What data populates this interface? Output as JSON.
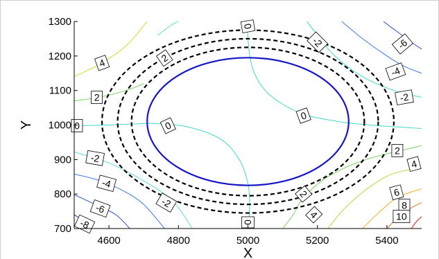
{
  "chart_data": {
    "type": "contour",
    "xlabel": "X",
    "ylabel": "Y",
    "xlim": [
      4500,
      5500
    ],
    "ylim": [
      700,
      1300
    ],
    "xticks": [
      "4600",
      "4800",
      "5000",
      "5200",
      "5400"
    ],
    "yticks": [
      "700",
      "800",
      "900",
      "1000",
      "1100",
      "1200",
      "1300"
    ],
    "grid": false,
    "ellipse": {
      "center_x": 5000,
      "center_y": 1010,
      "semi_x": 290,
      "semi_y": 185,
      "color": "#1414c8"
    },
    "dashed_rings": [
      {
        "center_x": 5000,
        "center_y": 1010,
        "semi_x": 335,
        "semi_y": 215
      },
      {
        "center_x": 5000,
        "center_y": 1010,
        "semi_x": 375,
        "semi_y": 240
      },
      {
        "center_x": 5000,
        "center_y": 1010,
        "semi_x": 420,
        "semi_y": 265
      }
    ],
    "contour_labels": [
      {
        "text": "4",
        "x": 4580,
        "y": 1180,
        "angle": -20
      },
      {
        "text": "2",
        "x": 4565,
        "y": 1080,
        "angle": 0
      },
      {
        "text": "0",
        "x": 4508,
        "y": 998,
        "angle": 0
      },
      {
        "text": "-2",
        "x": 4560,
        "y": 904,
        "angle": 10
      },
      {
        "text": "-4",
        "x": 4593,
        "y": 831,
        "angle": 15
      },
      {
        "text": "-6",
        "x": 4575,
        "y": 758,
        "angle": 20
      },
      {
        "text": "-8",
        "x": 4530,
        "y": 713,
        "angle": 25
      },
      {
        "text": "2",
        "x": 4760,
        "y": 1194,
        "angle": -35
      },
      {
        "text": "0",
        "x": 5000,
        "y": 1286,
        "angle": 80
      },
      {
        "text": "-2",
        "x": 5200,
        "y": 1240,
        "angle": 45
      },
      {
        "text": "-6",
        "x": 5445,
        "y": 1235,
        "angle": -40
      },
      {
        "text": "-4",
        "x": 5425,
        "y": 1155,
        "angle": -20
      },
      {
        "text": "-2",
        "x": 5450,
        "y": 1080,
        "angle": -10
      },
      {
        "text": "0",
        "x": 5160,
        "y": 1027,
        "angle": -20
      },
      {
        "text": "0",
        "x": 4770,
        "y": 998,
        "angle": -25
      },
      {
        "text": "2",
        "x": 5430,
        "y": 926,
        "angle": 0
      },
      {
        "text": "4",
        "x": 5478,
        "y": 887,
        "angle": -15
      },
      {
        "text": "6",
        "x": 5428,
        "y": 805,
        "angle": -15
      },
      {
        "text": "8",
        "x": 5450,
        "y": 767,
        "angle": 0
      },
      {
        "text": "10",
        "x": 5442,
        "y": 735,
        "angle": 0
      },
      {
        "text": "2",
        "x": 5160,
        "y": 800,
        "angle": 50
      },
      {
        "text": "4",
        "x": 5190,
        "y": 740,
        "angle": 45
      },
      {
        "text": "-2",
        "x": 4765,
        "y": 775,
        "angle": 30
      },
      {
        "text": "0",
        "x": 5000,
        "y": 718,
        "angle": 90
      }
    ],
    "colored_contours": [
      {
        "color": "#d8d820",
        "points": [
          [
            4500,
            1140
          ],
          [
            4580,
            1180
          ],
          [
            4650,
            1230
          ],
          [
            4710,
            1300
          ]
        ]
      },
      {
        "color": "#7ad35a",
        "points": [
          [
            4500,
            1070
          ],
          [
            4570,
            1080
          ],
          [
            4650,
            1100
          ],
          [
            4700,
            1120
          ]
        ]
      },
      {
        "color": "#60e890",
        "points": [
          [
            4740,
            1260
          ],
          [
            4780,
            1290
          ],
          [
            4800,
            1300
          ]
        ]
      },
      {
        "color": "#40d8d0",
        "points": [
          [
            4500,
            998
          ],
          [
            4600,
            1000
          ],
          [
            4720,
            1005
          ]
        ]
      },
      {
        "color": "#40d8d0",
        "points": [
          [
            4720,
            1005
          ],
          [
            4820,
            996
          ],
          [
            4920,
            960
          ],
          [
            4975,
            900
          ],
          [
            5000,
            830
          ],
          [
            5005,
            760
          ],
          [
            5000,
            700
          ]
        ]
      },
      {
        "color": "#40d8d0",
        "points": [
          [
            5000,
            1300
          ],
          [
            5000,
            1250
          ],
          [
            5015,
            1160
          ],
          [
            5060,
            1090
          ],
          [
            5150,
            1035
          ],
          [
            5260,
            1010
          ],
          [
            5350,
            1000
          ],
          [
            5500,
            990
          ]
        ]
      },
      {
        "color": "#60d8e8",
        "points": [
          [
            4500,
            922
          ],
          [
            4600,
            890
          ],
          [
            4680,
            850
          ],
          [
            4730,
            820
          ],
          [
            4760,
            800
          ]
        ]
      },
      {
        "color": "#60d8e8",
        "points": [
          [
            4760,
            800
          ],
          [
            4800,
            760
          ],
          [
            4840,
            700
          ]
        ]
      },
      {
        "color": "#3c78e0",
        "points": [
          [
            4500,
            858
          ],
          [
            4570,
            840
          ],
          [
            4640,
            810
          ],
          [
            4700,
            770
          ],
          [
            4760,
            700
          ]
        ]
      },
      {
        "color": "#2850d0",
        "points": [
          [
            4500,
            798
          ],
          [
            4560,
            770
          ],
          [
            4620,
            740
          ],
          [
            4660,
            700
          ]
        ]
      },
      {
        "color": "#1a2ab8",
        "points": [
          [
            4500,
            740
          ],
          [
            4530,
            720
          ],
          [
            4550,
            700
          ]
        ]
      },
      {
        "color": "#40d8d0",
        "points": [
          [
            5170,
            1300
          ],
          [
            5200,
            1260
          ],
          [
            5250,
            1200
          ],
          [
            5330,
            1140
          ],
          [
            5420,
            1100
          ],
          [
            5500,
            1080
          ]
        ]
      },
      {
        "color": "#3c78e0",
        "points": [
          [
            5270,
            1300
          ],
          [
            5330,
            1250
          ],
          [
            5400,
            1200
          ],
          [
            5450,
            1170
          ],
          [
            5500,
            1150
          ]
        ]
      },
      {
        "color": "#2850d0",
        "points": [
          [
            5390,
            1300
          ],
          [
            5430,
            1270
          ],
          [
            5470,
            1240
          ],
          [
            5500,
            1220
          ]
        ]
      },
      {
        "color": "#7ad35a",
        "points": [
          [
            5100,
            700
          ],
          [
            5130,
            740
          ],
          [
            5160,
            790
          ],
          [
            5230,
            850
          ],
          [
            5340,
            900
          ],
          [
            5500,
            940
          ]
        ]
      },
      {
        "color": "#b8d83a",
        "points": [
          [
            5230,
            700
          ],
          [
            5280,
            760
          ],
          [
            5350,
            820
          ],
          [
            5420,
            860
          ],
          [
            5500,
            875
          ]
        ]
      },
      {
        "color": "#f0b020",
        "points": [
          [
            5330,
            700
          ],
          [
            5370,
            740
          ],
          [
            5430,
            790
          ],
          [
            5500,
            815
          ]
        ]
      },
      {
        "color": "#f07020",
        "points": [
          [
            5400,
            700
          ],
          [
            5430,
            730
          ],
          [
            5470,
            760
          ],
          [
            5500,
            775
          ]
        ]
      },
      {
        "color": "#e02020",
        "points": [
          [
            5470,
            700
          ],
          [
            5485,
            720
          ],
          [
            5500,
            735
          ]
        ]
      }
    ]
  }
}
